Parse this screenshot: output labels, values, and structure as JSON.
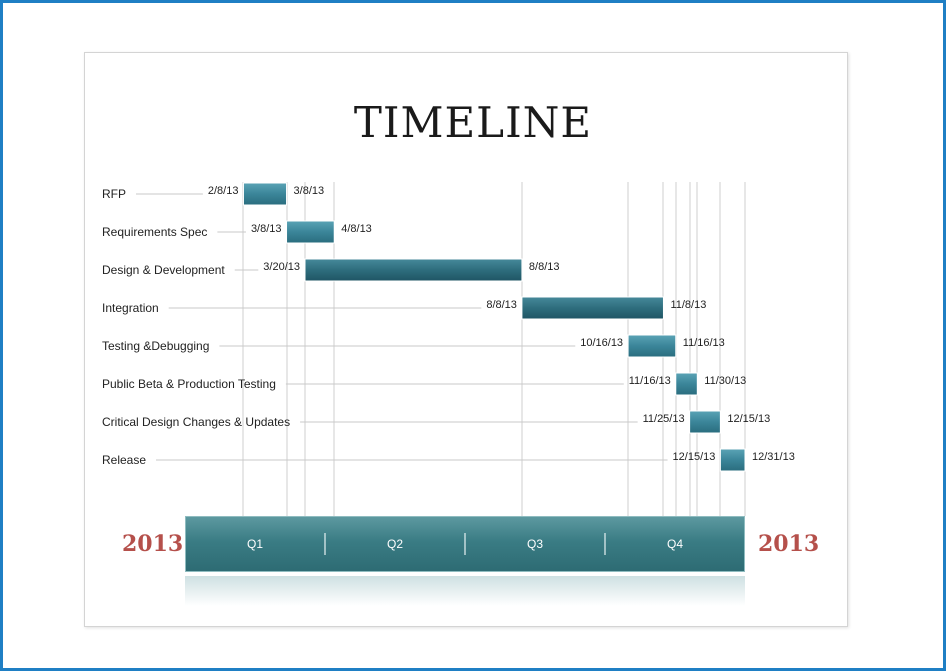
{
  "title": "TIMELINE",
  "colors": {
    "bar": "#2f7587",
    "axis": "#3c8088",
    "year": "#b5504b",
    "frame": "#1f7fc4"
  },
  "chart_data": {
    "type": "gantt",
    "year_left": "2013",
    "year_right": "2013",
    "axis_range": [
      "2013-01-01",
      "2013-12-31"
    ],
    "quarters": [
      {
        "label": "Q1",
        "start": "2013-01-01",
        "end": "2013-04-01"
      },
      {
        "label": "Q2",
        "start": "2013-04-01",
        "end": "2013-07-01"
      },
      {
        "label": "Q3",
        "start": "2013-07-01",
        "end": "2013-10-01"
      },
      {
        "label": "Q4",
        "start": "2013-10-01",
        "end": "2013-12-31"
      }
    ],
    "tasks": [
      {
        "name": "RFP",
        "start": "2013-02-08",
        "end": "2013-03-08",
        "start_label": "2/8/13",
        "end_label": "3/8/13"
      },
      {
        "name": "Requirements Spec",
        "start": "2013-03-08",
        "end": "2013-04-08",
        "start_label": "3/8/13",
        "end_label": "4/8/13"
      },
      {
        "name": "Design & Development",
        "start": "2013-03-20",
        "end": "2013-08-08",
        "start_label": "3/20/13",
        "end_label": "8/8/13"
      },
      {
        "name": "Integration",
        "start": "2013-08-08",
        "end": "2013-11-08",
        "start_label": "8/8/13",
        "end_label": "11/8/13"
      },
      {
        "name": "Testing &Debugging",
        "start": "2013-10-16",
        "end": "2013-11-16",
        "start_label": "10/16/13",
        "end_label": "11/16/13"
      },
      {
        "name": "Public Beta & Production Testing",
        "start": "2013-11-16",
        "end": "2013-11-30",
        "start_label": "11/16/13",
        "end_label": "11/30/13"
      },
      {
        "name": "Critical Design Changes & Updates",
        "start": "2013-11-25",
        "end": "2013-12-15",
        "start_label": "11/25/13",
        "end_label": "12/15/13"
      },
      {
        "name": "Release",
        "start": "2013-12-15",
        "end": "2013-12-31",
        "start_label": "12/15/13",
        "end_label": "12/31/13"
      }
    ]
  }
}
